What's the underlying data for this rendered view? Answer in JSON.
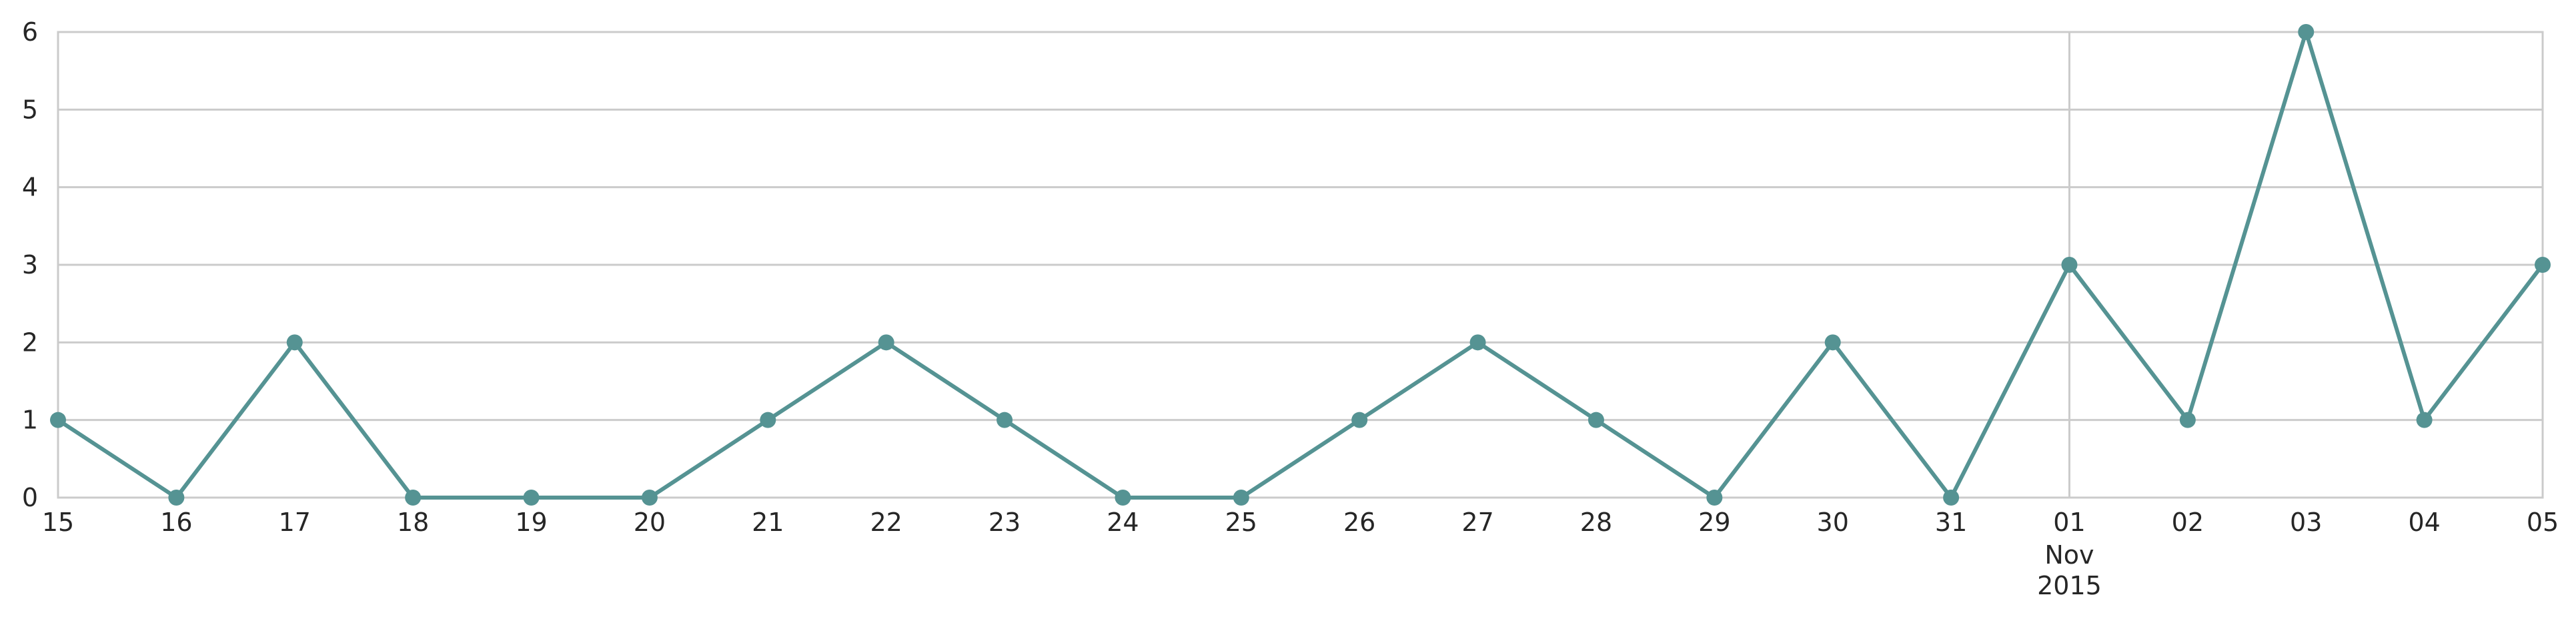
{
  "chart_data": {
    "type": "line",
    "title": "",
    "xlabel": "",
    "ylabel": "",
    "x": [
      "15",
      "16",
      "17",
      "18",
      "19",
      "20",
      "21",
      "22",
      "23",
      "24",
      "25",
      "26",
      "27",
      "28",
      "29",
      "30",
      "31",
      "01",
      "02",
      "03",
      "04",
      "05"
    ],
    "x_dates": [
      "2015-10-15",
      "2015-10-16",
      "2015-10-17",
      "2015-10-18",
      "2015-10-19",
      "2015-10-20",
      "2015-10-21",
      "2015-10-22",
      "2015-10-23",
      "2015-10-24",
      "2015-10-25",
      "2015-10-26",
      "2015-10-27",
      "2015-10-28",
      "2015-10-29",
      "2015-10-30",
      "2015-10-31",
      "2015-11-01",
      "2015-11-02",
      "2015-11-03",
      "2015-11-04",
      "2015-11-05"
    ],
    "month_label": {
      "at": "01",
      "lines": [
        "Nov",
        "2015"
      ]
    },
    "series": [
      {
        "values": [
          1,
          0,
          2,
          0,
          0,
          0,
          1,
          2,
          1,
          0,
          0,
          1,
          2,
          1,
          0,
          2,
          0,
          3,
          1,
          6,
          1,
          3
        ]
      }
    ],
    "ylim": [
      0,
      6
    ],
    "yticks": [
      "0",
      "1",
      "2",
      "3",
      "4",
      "5",
      "6"
    ],
    "grid": true,
    "vertical_gridline_at": "01",
    "legend": "none",
    "colors": {
      "line": "#559393",
      "marker": "#559393",
      "grid": "#cbcbcb",
      "text": "#262626",
      "background": "#ffffff"
    }
  }
}
